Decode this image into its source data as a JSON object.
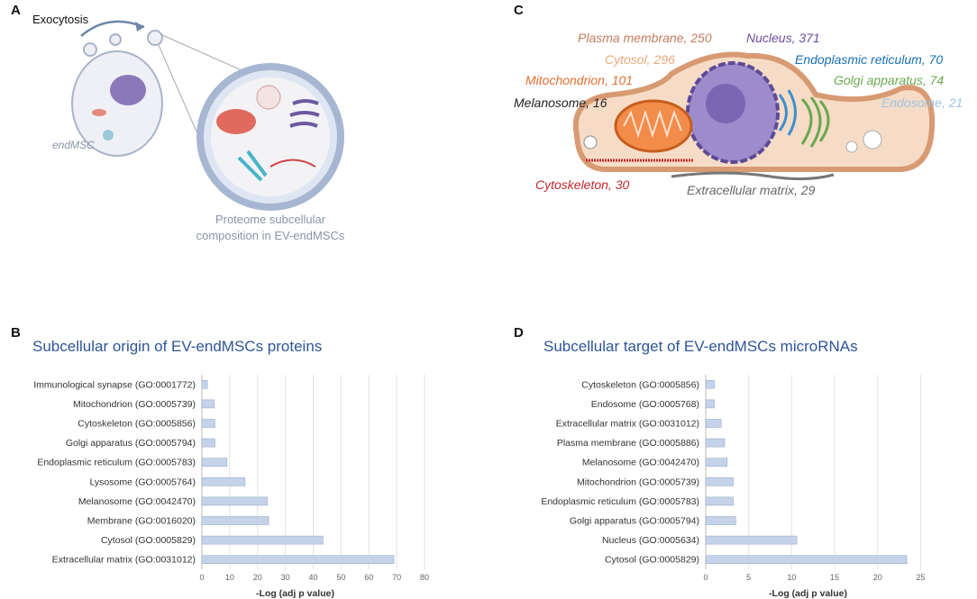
{
  "panels": [
    "A",
    "B",
    "C",
    "D"
  ],
  "diagram_a": {
    "arrow_label": "Exocytosis",
    "cell_label": "endMSC",
    "caption": [
      "Proteome subcellular",
      "composition in EV-endMSCs"
    ]
  },
  "diagram_c": {
    "labels": [
      {
        "text": "Plasma membrane, 250",
        "color": "#c47b5e"
      },
      {
        "text": "Nucleus, 371",
        "color": "#6a4fa0"
      },
      {
        "text": "Cytosol, 296",
        "color": "#e8a77a"
      },
      {
        "text": "Endoplasmic reticulum, 70",
        "color": "#1a6fb5"
      },
      {
        "text": "Mitochondrion, 101",
        "color": "#e07030"
      },
      {
        "text": "Golgi apparatus, 74",
        "color": "#6aa84f"
      },
      {
        "text": "Melanosome, 16",
        "color": "#222222"
      },
      {
        "text": "Endosome, 21",
        "color": "#9ec3e6"
      },
      {
        "text": "Cytoskeleton, 30",
        "color": "#c0282d"
      },
      {
        "text": "Extracellular matrix, 29",
        "color": "#666666"
      }
    ]
  },
  "chart_data": [
    {
      "type": "barh",
      "title": "Subcellular origin of EV-endMSCs proteins",
      "x_label": "-Log (adj p value)",
      "categories": [
        "Immunological synapse (GO:0001772)",
        "Mitochondrion (GO:0005739)",
        "Cytoskeleton (GO:0005856)",
        "Golgi apparatus (GO:0005794)",
        "Endoplasmic reticulum (GO:0005783)",
        "Lysosome (GO:0005764)",
        "Melanosome (GO:0042470)",
        "Membrane (GO:0016020)",
        "Cytosol (GO:0005829)",
        "Extracellular matrix (GO:0031012)"
      ],
      "values": [
        2,
        4.5,
        4.7,
        4.7,
        9,
        15.5,
        23.5,
        24,
        43.5,
        69
      ],
      "color": "#c5d3ea",
      "xlim": [
        0,
        80
      ],
      "xticks": [
        0,
        10,
        20,
        30,
        40,
        50,
        60,
        70,
        80
      ],
      "grid": true
    },
    {
      "type": "barh",
      "title": "Subcellular target of EV-endMSCs microRNAs",
      "x_label": "-Log (adj p value)",
      "categories": [
        "Cytoskeleton (GO:0005856)",
        "Endosome (GO:0005768)",
        "Extracellular matrix (GO:0031012)",
        "Plasma membrane (GO:0005886)",
        "Melanosome (GO:0042470)",
        "Mitochondrion (GO:0005739)",
        "Endoplasmic reticulum (GO:0005783)",
        "Golgi apparatus (GO:0005794)",
        "Nucleus (GO:0005634)",
        "Cytosol (GO:0005829)"
      ],
      "values": [
        1,
        1,
        1.8,
        2.2,
        2.5,
        3.2,
        3.2,
        3.5,
        10.6,
        23.4
      ],
      "color": "#c5d3ea",
      "xlim": [
        0,
        28
      ],
      "xticks": [
        0,
        5,
        10,
        15,
        20,
        25
      ],
      "grid": true
    }
  ]
}
